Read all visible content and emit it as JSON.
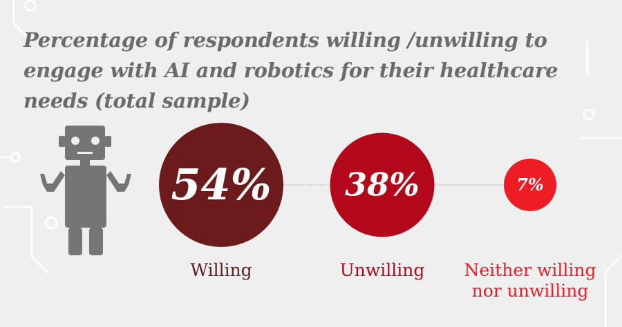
{
  "chart_data": {
    "type": "bubble",
    "title": "Percentage of respondents willing /unwilling to engage with AI and robotics for their healthcare needs (total sample)",
    "categories": [
      "Willing",
      "Unwilling",
      "Neither willing nor unwilling"
    ],
    "values": [
      54,
      38,
      7
    ],
    "unit": "%",
    "series": [
      {
        "category": "Willing",
        "value": 54,
        "label": "54%",
        "color": "#6b1b1b",
        "text_color": "#5a2222",
        "label_lines": [
          "Willing"
        ]
      },
      {
        "category": "Unwilling",
        "value": 38,
        "label": "38%",
        "color": "#b3081c",
        "text_color": "#b3081c",
        "label_lines": [
          "Unwilling"
        ]
      },
      {
        "category": "Neither willing nor unwilling",
        "value": 7,
        "label": "7%",
        "color": "#ee1c25",
        "text_color": "#ee1c25",
        "label_lines": [
          "Neither willing",
          "nor unwilling"
        ]
      }
    ]
  },
  "colors": {
    "background": "#efefef",
    "title": "#6b6b6b",
    "robot": "#757575",
    "circuit": "#ffffff",
    "connector": "#b5b5b5"
  },
  "icons": {
    "robot": "robot-icon"
  }
}
